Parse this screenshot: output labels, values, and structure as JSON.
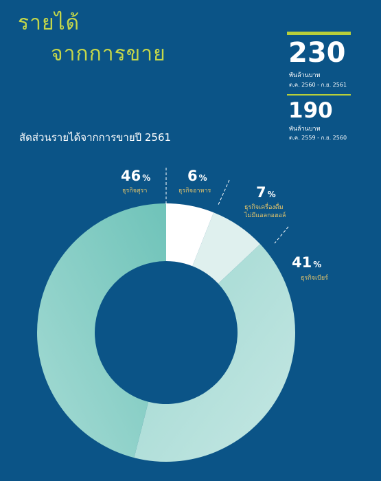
{
  "heading": {
    "line1": "รายได้",
    "line2": "จากการขาย"
  },
  "kpis": [
    {
      "value": "230",
      "unit": "พันล้านบาท",
      "period": "ต.ค. 2560 - ก.ย. 2561"
    },
    {
      "value": "190",
      "unit": "พันล้านบาท",
      "period": "ต.ค. 2559 - ก.ย. 2560"
    }
  ],
  "colors": {
    "background": "#0b5487",
    "accent": "#c4d74a",
    "label": "#e8c76a"
  },
  "chart_data": {
    "type": "pie",
    "subtype": "donut",
    "title": "สัดส่วนรายได้จากการขายปี 2561",
    "slices": [
      {
        "label_lines": [
          "ธุรกิจอาหาร"
        ],
        "value": 6,
        "display": "6",
        "color": "#ffffff"
      },
      {
        "label_lines": [
          "ธุรกิจเครื่องดื่ม",
          "ไม่มีแอลกอฮอล์"
        ],
        "value": 7,
        "display": "7",
        "color": "#dff0ee"
      },
      {
        "label_lines": [
          "ธุรกิจเบียร์"
        ],
        "value": 41,
        "display": "41",
        "color": "#a9dcd6"
      },
      {
        "label_lines": [
          "ธุรกิจสุรา"
        ],
        "value": 46,
        "display": "46",
        "color": "#8fd0c8"
      }
    ],
    "percent_symbol": "%"
  }
}
